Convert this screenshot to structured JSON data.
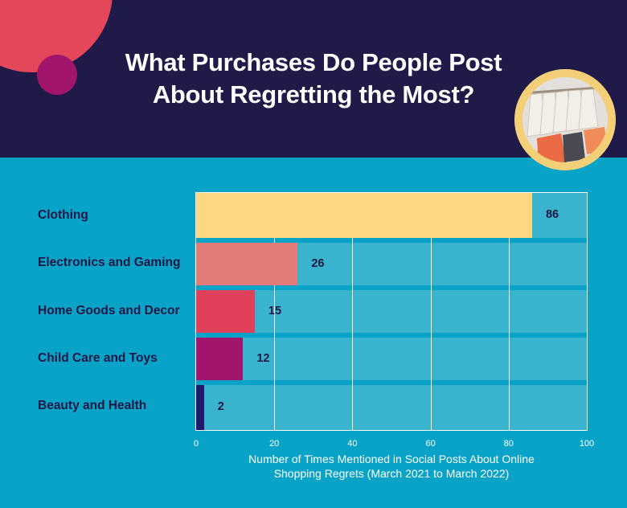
{
  "header": {
    "title_line1": "What Purchases Do People Post",
    "title_line2": "About Regretting the Most?"
  },
  "colors": {
    "header_bg": "#201a48",
    "body_bg": "#0aa3c8",
    "plot_bg": "#3ab3cf",
    "deco_red": "#e5475a",
    "deco_magenta": "#a1156c",
    "photo_ring": "#f3cf78"
  },
  "icons": [
    "clothing-rack-photo"
  ],
  "chart_data": {
    "type": "bar",
    "orientation": "horizontal",
    "categories": [
      "Clothing",
      "Electronics and Gaming",
      "Home Goods and Decor",
      "Child Care and Toys",
      "Beauty and Health"
    ],
    "values": [
      86,
      26,
      15,
      12,
      2
    ],
    "bar_colors": [
      "#fcd981",
      "#e07b78",
      "#e0405a",
      "#a1156c",
      "#201a6b"
    ],
    "title": "What Purchases Do People Post About Regretting the Most?",
    "xlabel_line1": "Number of Times Mentioned in Social Posts About Online",
    "xlabel_line2": "Shopping Regrets (March 2021 to March 2022)",
    "xlim": [
      0,
      100
    ],
    "xticks": [
      "0",
      "20",
      "40",
      "60",
      "80",
      "100"
    ],
    "grid": true,
    "legend": "none"
  }
}
